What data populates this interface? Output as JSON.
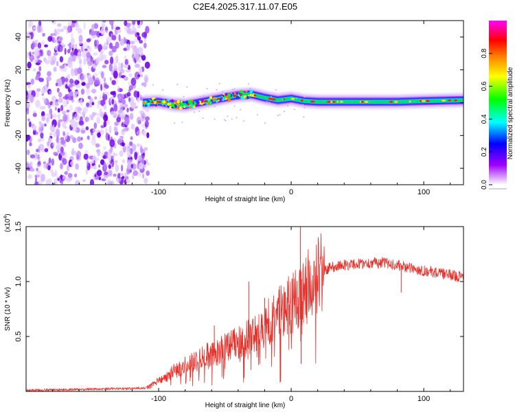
{
  "title": "C2E4.2025.317.11.07.E05",
  "chart_data": [
    {
      "type": "heatmap",
      "title": "C2E4.2025.317.11.07.E05",
      "xlabel": "Height of straight line (km)",
      "ylabel": "Frequency (Hz)",
      "xlim": [
        -200,
        130
      ],
      "ylim": [
        -50,
        50
      ],
      "x_ticks": [
        -100,
        0,
        100
      ],
      "x_tick_labels": [
        "-100",
        "0",
        "100"
      ],
      "y_ticks": [
        -40,
        -20,
        0,
        20,
        40
      ],
      "y_tick_labels": [
        "-40",
        "-20",
        "0",
        "20",
        "40"
      ],
      "noise_region_x": [
        -200,
        -108
      ],
      "ridge_x": [
        -112,
        -100,
        -90,
        -80,
        -70,
        -60,
        -50,
        -40,
        -30,
        -20,
        -10,
        0,
        10,
        20,
        40,
        60,
        80,
        100,
        130
      ],
      "ridge_y": [
        0,
        0.5,
        -1,
        -1.5,
        0,
        1.5,
        3,
        4.5,
        5,
        3,
        1.5,
        2.5,
        1,
        0.5,
        0.5,
        0.5,
        0.5,
        1,
        1.5
      ],
      "colorbar": {
        "label": "Normalized spectral amplitude",
        "range": [
          0,
          1
        ],
        "ticks": [
          0.0,
          0.2,
          0.4,
          0.6,
          0.8
        ],
        "tick_labels": [
          "0.0",
          "0.2",
          "0.4",
          "0.6",
          "0.8"
        ],
        "colormap": [
          "#ffffff",
          "#a000ff",
          "#0000ff",
          "#00ffff",
          "#00ff00",
          "#ffff00",
          "#ff8000",
          "#ff0000",
          "#ff00ff"
        ]
      }
    },
    {
      "type": "line",
      "xlabel": "Height of straight line (km)",
      "ylabel": "SNR (10 * v/v)",
      "multiplier_label": "(x10",
      "multiplier_exponent": "4",
      "multiplier_close": ")",
      "xlim": [
        -200,
        130
      ],
      "ylim": [
        0,
        1.5
      ],
      "x_ticks": [
        -100,
        0,
        100
      ],
      "x_tick_labels": [
        "-100",
        "0",
        "100"
      ],
      "y_ticks": [
        0.5,
        1.0,
        1.5
      ],
      "y_tick_labels": [
        "0.5",
        "1.0",
        "1.5"
      ],
      "series": [
        {
          "name": "SNR",
          "color": "#e8302a",
          "x": [
            -200,
            -150,
            -110,
            -105,
            -100,
            -95,
            -90,
            -85,
            -80,
            -75,
            -70,
            -65,
            -60,
            -55,
            -50,
            -45,
            -40,
            -35,
            -30,
            -25,
            -20,
            -15,
            -10,
            -5,
            0,
            3,
            6,
            8,
            10,
            15,
            20,
            25,
            30,
            40,
            50,
            60,
            70,
            80,
            90,
            100,
            110,
            120,
            130
          ],
          "values": [
            0.01,
            0.02,
            0.03,
            0.06,
            0.1,
            0.13,
            0.18,
            0.2,
            0.24,
            0.26,
            0.3,
            0.32,
            0.35,
            0.36,
            0.4,
            0.42,
            0.45,
            0.48,
            0.5,
            0.55,
            0.6,
            0.65,
            0.7,
            0.75,
            0.8,
            0.82,
            0.85,
            0.8,
            0.92,
            1.0,
            1.05,
            1.1,
            1.13,
            1.15,
            1.16,
            1.17,
            1.17,
            1.15,
            1.12,
            1.1,
            1.08,
            1.06,
            1.04
          ]
        }
      ],
      "spikes": [
        {
          "x": -58,
          "value": 0.6
        },
        {
          "x": -48,
          "value": 0.5
        },
        {
          "x": -32,
          "value": 1.0
        },
        {
          "x": -20,
          "value": 0.85
        },
        {
          "x": 7,
          "value": 1.5
        },
        {
          "x": 7.5,
          "value": 0.25
        },
        {
          "x": 83,
          "value": 0.9
        }
      ]
    }
  ]
}
